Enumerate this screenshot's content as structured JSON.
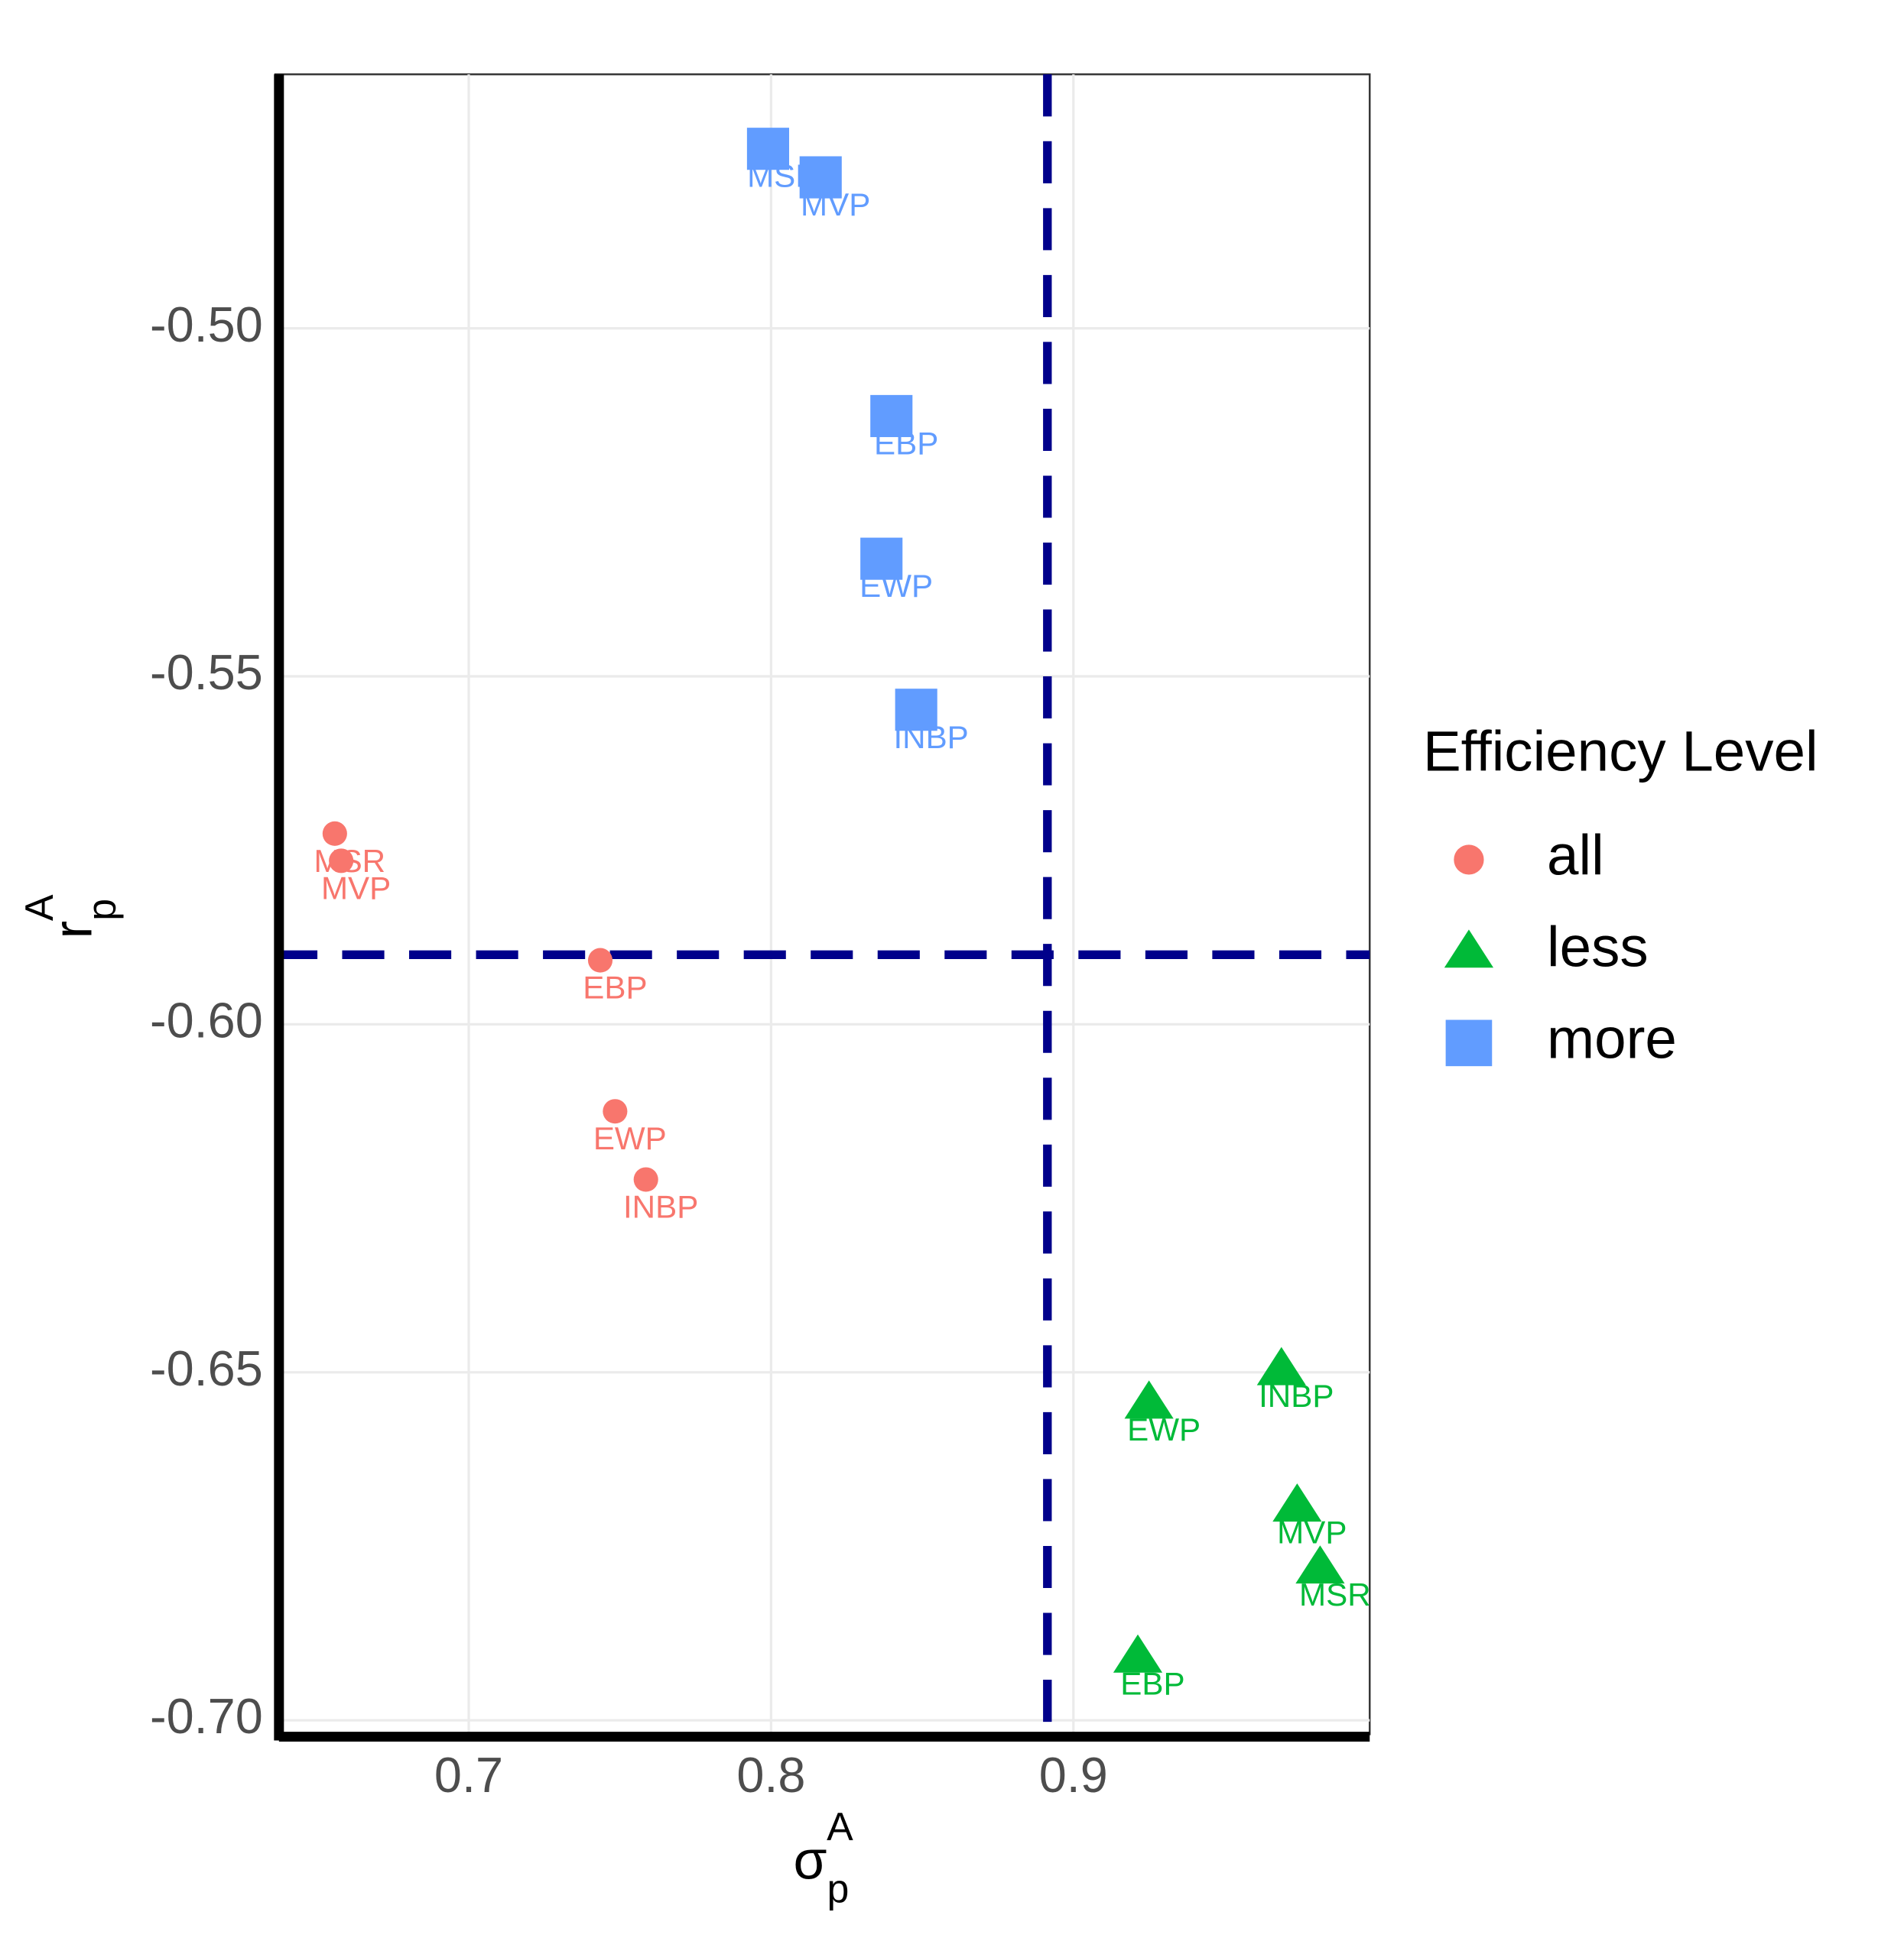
{
  "chart_data": {
    "type": "scatter",
    "xlabel": {
      "base": "σ",
      "sub": "p",
      "sup": "A"
    },
    "ylabel": {
      "base": "r",
      "sub": "p",
      "sup": "A"
    },
    "xlim": [
      0.636,
      0.998
    ],
    "ylim": [
      -0.702,
      -0.4635
    ],
    "xticks": [
      0.7,
      0.8,
      0.9
    ],
    "yticks": [
      {
        "value": -0.5,
        "label": "-0.50"
      },
      {
        "value": -0.55,
        "label": "-0.55"
      },
      {
        "value": -0.6,
        "label": "-0.60"
      },
      {
        "value": -0.65,
        "label": "-0.65"
      },
      {
        "value": -0.7,
        "label": "-0.70"
      }
    ],
    "grid": true,
    "legend_title": "Efficiency Level",
    "legend_position": "right",
    "vline": {
      "value": 0.8914,
      "color": "#00008b"
    },
    "hline": {
      "value": -0.59,
      "color": "#00008b"
    },
    "series": [
      {
        "name": "all",
        "color": "#f8766d",
        "marker": "circle",
        "labels": [
          "MSR",
          "MVP",
          "EBP",
          "EWP",
          "INBP"
        ],
        "x": [
          0.6557,
          0.6578,
          0.7435,
          0.7484,
          0.7586
        ],
        "values": [
          -0.5726,
          -0.5765,
          -0.5908,
          -0.6125,
          -0.6223
        ]
      },
      {
        "name": "less",
        "color": "#00ba38",
        "marker": "triangle",
        "labels": [
          "INBP",
          "EWP",
          "MVP",
          "MSR",
          "EBP"
        ],
        "x": [
          0.9688,
          0.925,
          0.974,
          0.9816,
          0.9213
        ],
        "values": [
          -0.6495,
          -0.6543,
          -0.6691,
          -0.678,
          -0.6908
        ]
      },
      {
        "name": "more",
        "color": "#619cff",
        "marker": "square",
        "labels": [
          "MSR",
          "MVP",
          "EBP",
          "EWP",
          "INBP"
        ],
        "x": [
          0.799,
          0.8164,
          0.8398,
          0.8365,
          0.848
        ],
        "values": [
          -0.4742,
          -0.4783,
          -0.5126,
          -0.5331,
          -0.5548
        ]
      }
    ]
  }
}
